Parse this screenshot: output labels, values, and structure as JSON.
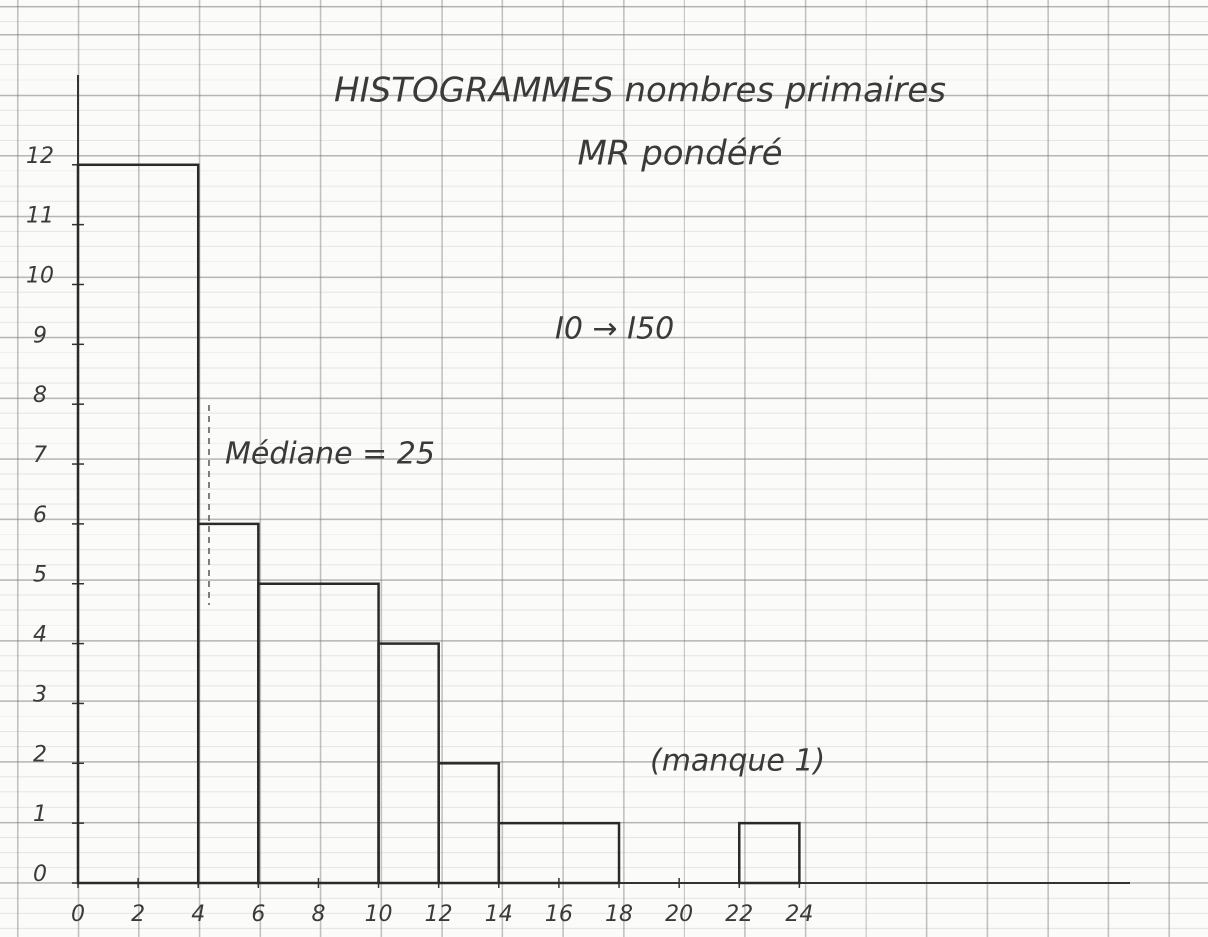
{
  "chart_data": {
    "type": "histogram",
    "title": "HISTOGRAMMES nombres primaires",
    "subtitle": "MR pondéré",
    "annotations": [
      "I0 → I50",
      "Médiane = 25",
      "(manque 1)"
    ],
    "bins": [
      0,
      4,
      6,
      10,
      12,
      14,
      18,
      22,
      24
    ],
    "values": [
      12,
      6,
      5,
      4,
      2,
      1,
      0,
      1
    ],
    "color": "#2a2a2a",
    "xlim": [
      0,
      35
    ],
    "xticks": [
      0,
      2,
      4,
      6,
      8,
      10,
      12,
      14,
      16,
      18,
      20,
      22,
      24
    ],
    "ylim": [
      0,
      13.5
    ],
    "yticks": [
      0,
      1,
      2,
      3,
      4,
      5,
      6,
      7,
      8,
      9,
      10,
      11,
      12
    ]
  }
}
